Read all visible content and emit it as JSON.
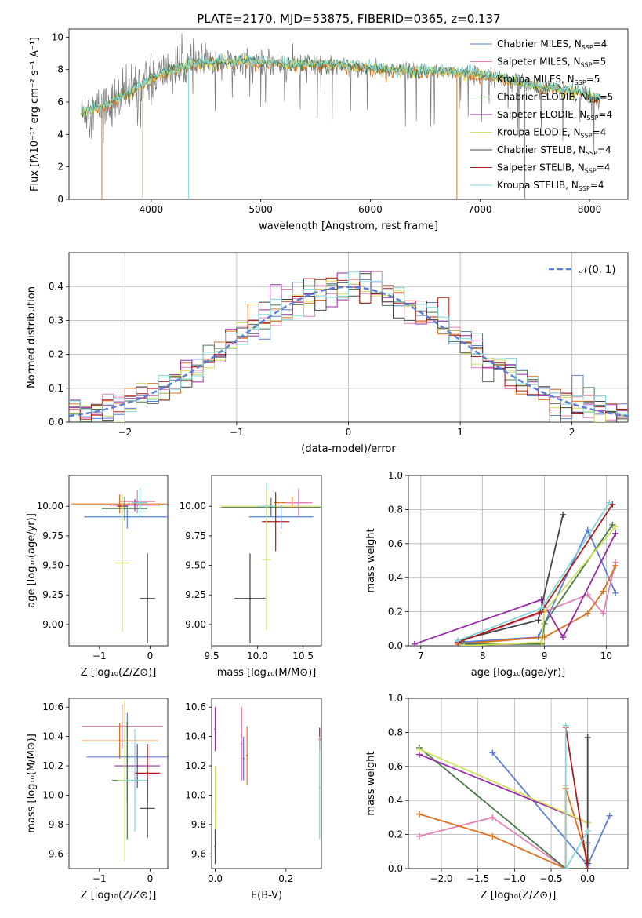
{
  "figure_title": "PLATE=2170, MJD=53875, FIBERID=0365, z=0.137",
  "colors": {
    "chabrier_miles": "#5b7fd6",
    "salpeter_miles": "#e57fb5",
    "kroupa_miles": "#e0701f",
    "chabrier_elodie": "#4a7a4a",
    "salpeter_elodie": "#9b2aa9",
    "kroupa_elodie": "#d2e05a",
    "chabrier_stelib": "#444444",
    "salpeter_stelib": "#b01c1c",
    "kroupa_stelib": "#7fd8d8"
  },
  "chart_data": [
    {
      "id": "spectrum",
      "type": "line",
      "title": "PLATE=2170, MJD=53875, FIBERID=0365, z=0.137",
      "xlabel": "wavelength [Angstrom, rest frame]",
      "ylabel": "Flux [fλ10⁻¹⁷ erg cm⁻² s⁻¹ A⁻¹]",
      "xlim": [
        3250,
        8350
      ],
      "ylim": [
        0,
        10.5
      ],
      "xticks": [
        "4000",
        "5000",
        "6000",
        "7000",
        "8000"
      ],
      "yticks": [
        "0",
        "2",
        "4",
        "6",
        "8",
        "10"
      ],
      "legend_position": "top-right",
      "legend": [
        {
          "label": "Chabrier MILES, N",
          "sub": "SSP",
          "n": "=4",
          "color_key": "chabrier_miles"
        },
        {
          "label": "Salpeter MILES, N",
          "sub": "SSP",
          "n": "=5",
          "color_key": "salpeter_miles"
        },
        {
          "label": "Kroupa MILES, N",
          "sub": "SSP",
          "n": "=5",
          "color_key": "kroupa_miles"
        },
        {
          "label": "Chabrier ELODIE, N",
          "sub": "SSP",
          "n": "=5",
          "color_key": "chabrier_elodie"
        },
        {
          "label": "Salpeter ELODIE, N",
          "sub": "SSP",
          "n": "=4",
          "color_key": "salpeter_elodie"
        },
        {
          "label": "Kroupa ELODIE, N",
          "sub": "SSP",
          "n": "=4",
          "color_key": "kroupa_elodie"
        },
        {
          "label": "Chabrier STELIB, N",
          "sub": "SSP",
          "n": "=4",
          "color_key": "chabrier_stelib"
        },
        {
          "label": "Salpeter STELIB, N",
          "sub": "SSP",
          "n": "=4",
          "color_key": "salpeter_stelib"
        },
        {
          "label": "Kroupa STELIB, N",
          "sub": "SSP",
          "n": "=4",
          "color_key": "kroupa_stelib"
        }
      ],
      "continuum": {
        "x": [
          3350,
          3500,
          3700,
          3900,
          4100,
          4300,
          4500,
          4700,
          4900,
          5100,
          5300,
          5500,
          5700,
          5900,
          6100,
          6300,
          6500,
          6700,
          6900,
          7100,
          7300,
          7500,
          7700,
          7900,
          8100
        ],
        "y": [
          5.4,
          5.6,
          6.2,
          7.0,
          7.8,
          8.2,
          8.4,
          8.5,
          8.5,
          8.4,
          8.3,
          8.3,
          8.3,
          8.2,
          8.0,
          7.9,
          7.9,
          7.9,
          7.8,
          7.6,
          7.3,
          7.0,
          6.8,
          6.6,
          6.1
        ]
      },
      "dips": [
        {
          "x": 3550,
          "color_key": "kroupa_miles"
        },
        {
          "x": 3920,
          "color_key": "kroupa_elodie"
        },
        {
          "x": 4340,
          "color_key": "kroupa_stelib"
        },
        {
          "x": 6790,
          "color_key": "kroupa_miles"
        },
        {
          "x": 7410,
          "color_key": "kroupa_miles"
        }
      ]
    },
    {
      "id": "residuals",
      "type": "histogram",
      "xlabel": "(data-model)/error",
      "ylabel": "Normed distribution",
      "xlim": [
        -2.5,
        2.5
      ],
      "ylim": [
        0,
        0.5
      ],
      "xticks": [
        "−2",
        "−1",
        "0",
        "1",
        "2"
      ],
      "yticks": [
        "0.0",
        "0.1",
        "0.2",
        "0.3",
        "0.4"
      ],
      "grid": true,
      "legend_position": "top-right",
      "legend": [
        {
          "label": "𝒩(0, 1)",
          "color_key": "chabrier_miles"
        }
      ],
      "bin_width": 0.1,
      "n_series": 9
    },
    {
      "id": "age_vs_Z",
      "type": "scatter",
      "xlabel": "Z [log₁₀(Z/Z⊙)]",
      "ylabel": "age  [log₁₀(age/yr)]",
      "xlim": [
        -1.6,
        0.35
      ],
      "ylim": [
        8.82,
        10.26
      ],
      "xticks": [
        "−1",
        "0"
      ],
      "yticks": [
        "9.00",
        "9.25",
        "9.50",
        "9.75",
        "10.00"
      ],
      "points": [
        {
          "x": -0.6,
          "xerr": 0.95,
          "y": 10.02,
          "yerr": 0.08,
          "color_key": "kroupa_miles"
        },
        {
          "x": -0.45,
          "xerr": 0.85,
          "y": 9.91,
          "yerr": 0.1,
          "color_key": "chabrier_miles"
        },
        {
          "x": -0.25,
          "xerr": 0.35,
          "y": 10.04,
          "yerr": 0.1,
          "color_key": "salpeter_miles"
        },
        {
          "x": -0.55,
          "xerr": 0.1,
          "y": 10.0,
          "yerr": 0.08,
          "color_key": "salpeter_stelib"
        },
        {
          "x": -0.5,
          "xerr": 0.45,
          "y": 9.98,
          "yerr": 0.1,
          "color_key": "chabrier_elodie"
        },
        {
          "x": -0.3,
          "xerr": 0.5,
          "y": 10.01,
          "yerr": 0.05,
          "color_key": "salpeter_elodie"
        },
        {
          "x": -0.55,
          "xerr": 0.15,
          "y": 9.52,
          "yerr": 0.58,
          "color_key": "kroupa_elodie"
        },
        {
          "x": -0.2,
          "xerr": 0.15,
          "y": 10.03,
          "yerr": 0.12,
          "color_key": "kroupa_stelib"
        },
        {
          "x": -0.05,
          "xerr": 0.15,
          "y": 9.22,
          "yerr": 0.38,
          "color_key": "chabrier_stelib"
        }
      ]
    },
    {
      "id": "age_vs_mass",
      "type": "scatter",
      "xlabel": "mass [log₁₀(M/M⊙)]",
      "ylabel": "",
      "xlim": [
        9.5,
        10.7
      ],
      "ylim": [
        8.82,
        10.26
      ],
      "xticks": [
        "9.5",
        "10.0",
        "10.5"
      ],
      "yticks": [
        "9.00",
        "9.25",
        "9.50",
        "9.75",
        "10.00"
      ],
      "points": [
        {
          "x": 10.2,
          "xerr": 0.6,
          "y": 10.0,
          "yerr": 0.1,
          "color_key": "kroupa_elodie"
        },
        {
          "x": 10.15,
          "xerr": 0.55,
          "y": 9.99,
          "yerr": 0.08,
          "color_key": "chabrier_elodie"
        },
        {
          "x": 10.38,
          "xerr": 0.2,
          "y": 10.03,
          "yerr": 0.05,
          "color_key": "kroupa_miles"
        },
        {
          "x": 10.26,
          "xerr": 0.35,
          "y": 9.91,
          "yerr": 0.1,
          "color_key": "chabrier_miles"
        },
        {
          "x": 10.45,
          "xerr": 0.15,
          "y": 10.03,
          "yerr": 0.12,
          "color_key": "salpeter_miles"
        },
        {
          "x": 10.2,
          "xerr": 0.15,
          "y": 9.87,
          "yerr": 0.25,
          "color_key": "salpeter_stelib"
        },
        {
          "x": 10.1,
          "xerr": 0.1,
          "y": 10.0,
          "yerr": 0.2,
          "color_key": "kroupa_stelib"
        },
        {
          "x": 10.1,
          "xerr": 0.05,
          "y": 9.55,
          "yerr": 0.6,
          "color_key": "kroupa_elodie"
        },
        {
          "x": 9.92,
          "xerr": 0.17,
          "y": 9.22,
          "yerr": 0.38,
          "color_key": "chabrier_stelib"
        }
      ]
    },
    {
      "id": "weight_vs_age",
      "type": "line",
      "xlabel": "age  [log₁₀(age/yr)]",
      "ylabel": "mass weight",
      "xlim": [
        6.8,
        10.35
      ],
      "ylim": [
        0,
        1
      ],
      "xticks": [
        "7",
        "8",
        "9",
        "10"
      ],
      "yticks": [
        "0.0",
        "0.2",
        "0.4",
        "0.6",
        "0.8",
        "1.0"
      ],
      "grid": true,
      "series": [
        {
          "color_key": "chabrier_miles",
          "x": [
            7.6,
            8.9,
            9.7,
            10.15
          ],
          "y": [
            0.02,
            0.05,
            0.68,
            0.31
          ]
        },
        {
          "color_key": "salpeter_miles",
          "x": [
            7.6,
            9.0,
            9.7,
            9.95,
            10.15
          ],
          "y": [
            0.02,
            0.2,
            0.3,
            0.19,
            0.49
          ]
        },
        {
          "color_key": "kroupa_miles",
          "x": [
            7.6,
            9.0,
            9.7,
            9.95,
            10.15
          ],
          "y": [
            0.01,
            0.05,
            0.19,
            0.32,
            0.47
          ]
        },
        {
          "color_key": "chabrier_elodie",
          "x": [
            7.7,
            8.95,
            9.0,
            10.1
          ],
          "y": [
            0.01,
            0.01,
            0.13,
            0.71
          ]
        },
        {
          "color_key": "salpeter_elodie",
          "x": [
            6.9,
            8.95,
            9.3,
            10.15
          ],
          "y": [
            0.01,
            0.27,
            0.05,
            0.66
          ]
        },
        {
          "color_key": "kroupa_elodie",
          "x": [
            7.7,
            8.95,
            9.0,
            10.15
          ],
          "y": [
            0.0,
            0.02,
            0.2,
            0.7
          ]
        },
        {
          "color_key": "chabrier_stelib",
          "x": [
            7.6,
            8.9,
            9.3
          ],
          "y": [
            0.03,
            0.15,
            0.77
          ]
        },
        {
          "color_key": "salpeter_stelib",
          "x": [
            7.6,
            8.95,
            10.1
          ],
          "y": [
            0.02,
            0.2,
            0.83
          ]
        },
        {
          "color_key": "kroupa_stelib",
          "x": [
            7.6,
            8.95,
            10.05
          ],
          "y": [
            0.03,
            0.22,
            0.84
          ]
        }
      ]
    },
    {
      "id": "mass_vs_Z",
      "type": "scatter",
      "xlabel": "Z [log₁₀(Z/Z⊙)]",
      "ylabel": "mass [log₁₀(M/M⊙)]",
      "xlim": [
        -1.6,
        0.35
      ],
      "ylim": [
        9.5,
        10.66
      ],
      "xticks": [
        "−1",
        "0"
      ],
      "yticks": [
        "9.6",
        "9.8",
        "10.0",
        "10.2",
        "10.4",
        "10.6"
      ],
      "points": [
        {
          "x": -0.55,
          "xerr": 0.8,
          "y": 10.47,
          "yerr": 0.15,
          "color_key": "salpeter_miles"
        },
        {
          "x": -0.6,
          "xerr": 0.75,
          "y": 10.37,
          "yerr": 0.12,
          "color_key": "kroupa_miles"
        },
        {
          "x": -0.45,
          "xerr": 0.8,
          "y": 10.26,
          "yerr": 0.3,
          "color_key": "chabrier_miles"
        },
        {
          "x": -0.25,
          "xerr": 0.45,
          "y": 10.2,
          "yerr": 0.15,
          "color_key": "salpeter_elodie"
        },
        {
          "x": -0.05,
          "xerr": 0.25,
          "y": 10.15,
          "yerr": 0.2,
          "color_key": "salpeter_stelib"
        },
        {
          "x": -0.45,
          "xerr": 0.3,
          "y": 10.1,
          "yerr": 0.4,
          "color_key": "chabrier_elodie"
        },
        {
          "x": -0.5,
          "xerr": 0.15,
          "y": 10.1,
          "yerr": 0.55,
          "color_key": "kroupa_elodie"
        },
        {
          "x": -0.3,
          "xerr": 0.25,
          "y": 10.1,
          "yerr": 0.35,
          "color_key": "kroupa_stelib"
        },
        {
          "x": -0.05,
          "xerr": 0.15,
          "y": 9.91,
          "yerr": 0.2,
          "color_key": "chabrier_stelib"
        }
      ]
    },
    {
      "id": "mass_vs_ebv",
      "type": "scatter",
      "xlabel": "E(B-V)",
      "ylabel": "",
      "xlim": [
        -0.01,
        0.3
      ],
      "ylim": [
        9.5,
        10.66
      ],
      "xticks": [
        "0.0",
        "0.2"
      ],
      "yticks": [
        "9.6",
        "9.8",
        "10.0",
        "10.2",
        "10.4",
        "10.6"
      ],
      "points": [
        {
          "x": 0.0,
          "y": 10.45,
          "yerr": 0.15,
          "color_key": "salpeter_elodie"
        },
        {
          "x": 0.0,
          "y": 9.9,
          "yerr": 0.3,
          "color_key": "kroupa_elodie"
        },
        {
          "x": 0.0,
          "y": 9.65,
          "yerr": 0.12,
          "color_key": "chabrier_stelib"
        },
        {
          "x": 0.075,
          "y": 10.35,
          "yerr": 0.25,
          "color_key": "salpeter_miles"
        },
        {
          "x": 0.08,
          "y": 10.25,
          "yerr": 0.15,
          "color_key": "chabrier_miles"
        },
        {
          "x": 0.09,
          "y": 10.27,
          "yerr": 0.2,
          "color_key": "kroupa_miles"
        },
        {
          "x": 0.295,
          "y": 10.38,
          "yerr": 0.08,
          "color_key": "salpeter_stelib"
        },
        {
          "x": 0.295,
          "y": 10.05,
          "yerr": 0.35,
          "color_key": "kroupa_stelib"
        }
      ]
    },
    {
      "id": "weight_vs_Z",
      "type": "line",
      "xlabel": "Z [log₁₀(Z/Z⊙)]",
      "ylabel": "mass weight",
      "xlim": [
        -2.45,
        0.55
      ],
      "ylim": [
        0,
        1
      ],
      "xticks": [
        "−2.0",
        "−1.5",
        "−1.0",
        "−0.5",
        "0.0"
      ],
      "yticks": [
        "0.0",
        "0.2",
        "0.4",
        "0.6",
        "0.8",
        "1.0"
      ],
      "grid": true,
      "series": [
        {
          "color_key": "chabrier_miles",
          "x": [
            -1.3,
            0.0,
            0.3
          ],
          "y": [
            0.68,
            0.02,
            0.31
          ]
        },
        {
          "color_key": "salpeter_miles",
          "x": [
            -2.3,
            -1.3,
            -0.3,
            -0.3
          ],
          "y": [
            0.19,
            0.3,
            0.0,
            0.49
          ]
        },
        {
          "color_key": "kroupa_miles",
          "x": [
            -2.3,
            -1.3,
            -0.3,
            -0.3,
            0.0
          ],
          "y": [
            0.32,
            0.19,
            0.0,
            0.47,
            0.05
          ]
        },
        {
          "color_key": "chabrier_elodie",
          "x": [
            -2.3,
            -0.3,
            0.0
          ],
          "y": [
            0.71,
            0.0,
            0.0
          ]
        },
        {
          "color_key": "salpeter_elodie",
          "x": [
            -2.3,
            0.0
          ],
          "y": [
            0.67,
            0.27
          ]
        },
        {
          "color_key": "kroupa_elodie",
          "x": [
            -2.3,
            0.0
          ],
          "y": [
            0.7,
            0.27
          ]
        },
        {
          "color_key": "chabrier_stelib",
          "x": [
            0.0,
            0.0,
            0.0
          ],
          "y": [
            0.77,
            0.15,
            0.03
          ]
        },
        {
          "color_key": "salpeter_stelib",
          "x": [
            -0.3,
            0.0
          ],
          "y": [
            0.83,
            0.0
          ]
        },
        {
          "color_key": "kroupa_stelib",
          "x": [
            -0.3,
            -0.3,
            0.0
          ],
          "y": [
            0.84,
            0.0,
            0.22
          ]
        }
      ]
    }
  ]
}
